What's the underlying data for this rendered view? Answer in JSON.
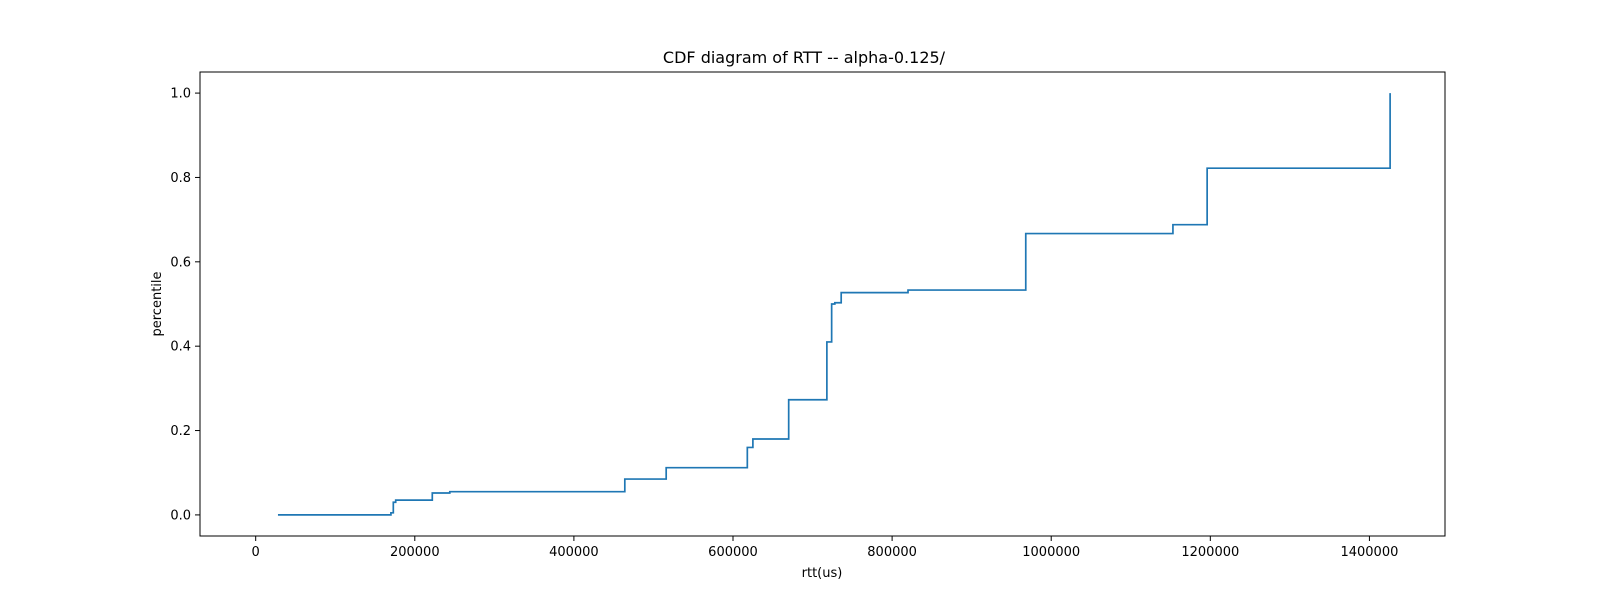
{
  "chart_data": {
    "type": "line",
    "title": "CDF diagram of RTT -- alpha-0.125/",
    "xlabel": "rtt(us)",
    "ylabel": "percentile",
    "xlim": [
      -70000,
      1495000
    ],
    "ylim": [
      -0.05,
      1.05
    ],
    "xticks": [
      0,
      200000,
      400000,
      600000,
      800000,
      1000000,
      1200000,
      1400000
    ],
    "xtick_labels": [
      "0",
      "200000",
      "400000",
      "600000",
      "800000",
      "1000000",
      "1200000",
      "1400000"
    ],
    "yticks": [
      0.0,
      0.2,
      0.4,
      0.6,
      0.8,
      1.0
    ],
    "ytick_labels": [
      "0.0",
      "0.2",
      "0.4",
      "0.6",
      "0.8",
      "1.0"
    ],
    "grid": false,
    "color": "#1f77b4",
    "series": [
      {
        "step": "post",
        "x": [
          28000,
          170000,
          173000,
          176000,
          222000,
          244000,
          464000,
          516000,
          618000,
          625000,
          670000,
          718000,
          724000,
          728000,
          736000,
          820000,
          968000,
          1153000,
          1196000,
          1426000
        ],
        "y": [
          0.0,
          0.005,
          0.03,
          0.035,
          0.052,
          0.055,
          0.085,
          0.112,
          0.16,
          0.18,
          0.273,
          0.41,
          0.5,
          0.503,
          0.527,
          0.533,
          0.667,
          0.688,
          0.822,
          1.0
        ]
      }
    ]
  }
}
